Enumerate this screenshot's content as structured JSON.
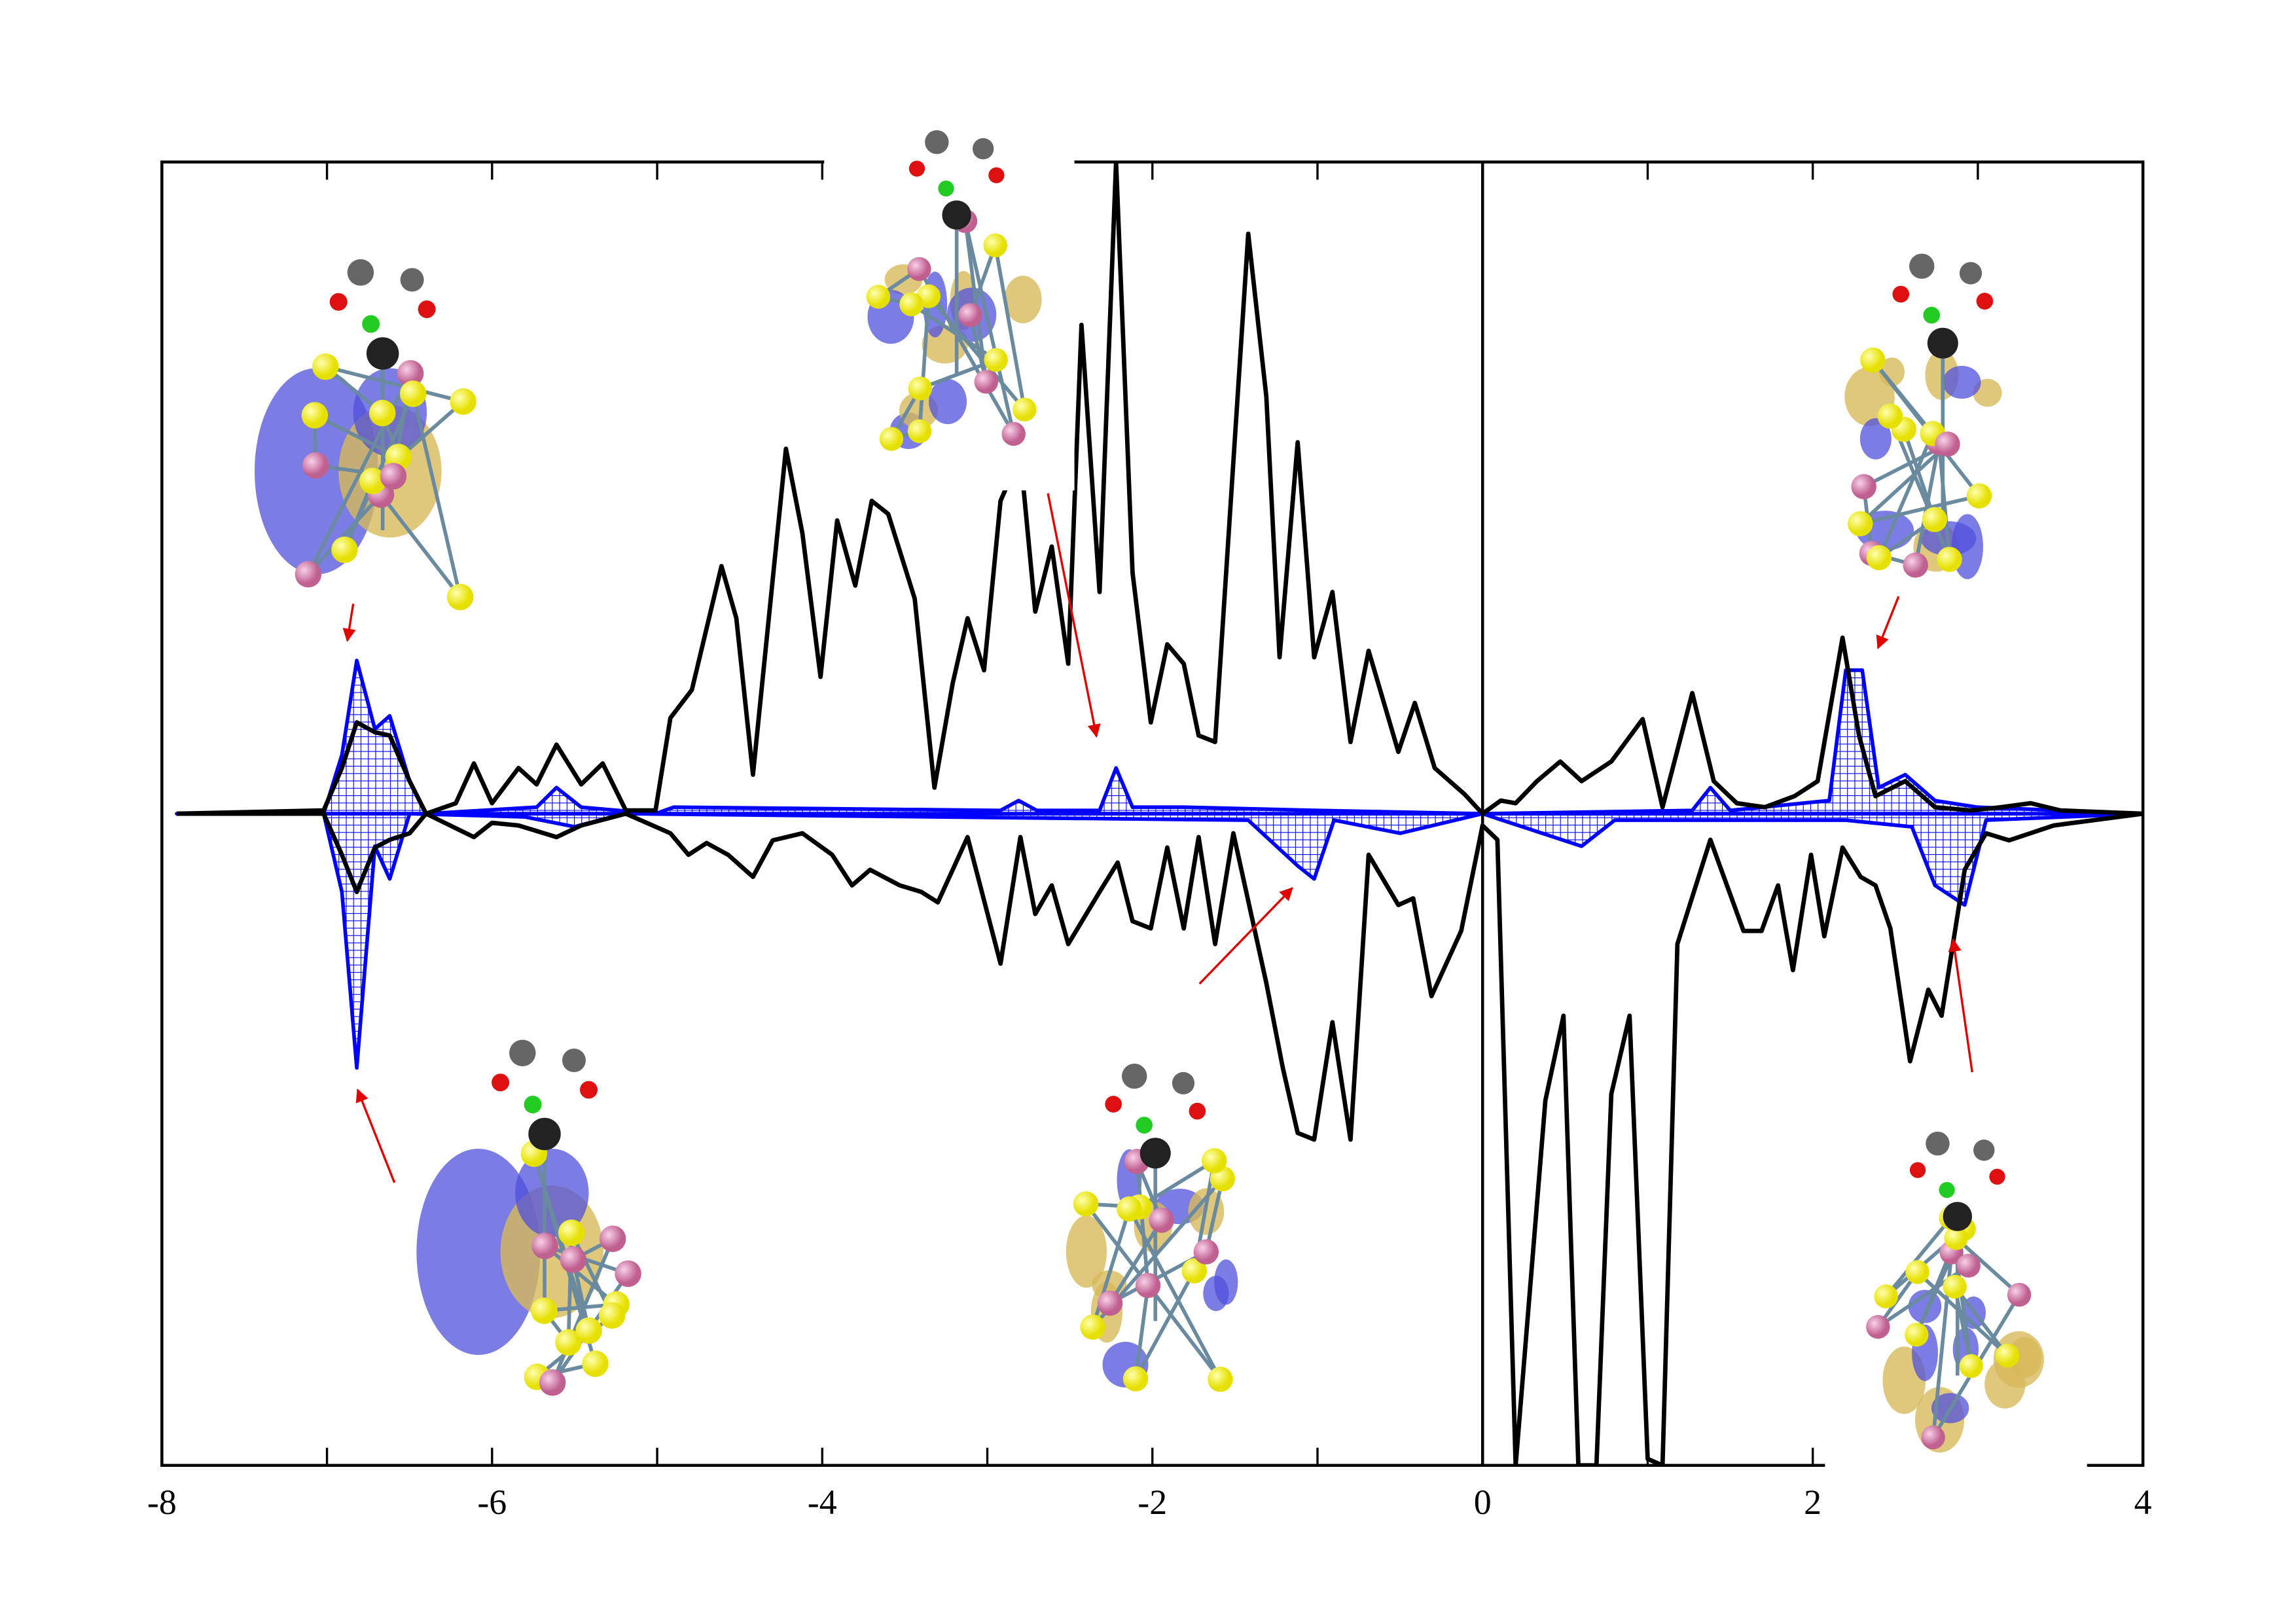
{
  "chart_data": {
    "type": "line",
    "xlim": [
      -8,
      4
    ],
    "ylim": [
      -1,
      1
    ],
    "xticks": [
      -8,
      -6,
      -4,
      -2,
      0,
      2,
      4
    ],
    "xminor": [
      -7,
      -5,
      -3,
      -1,
      1,
      3
    ],
    "vlines": [
      0
    ],
    "series": [
      {
        "color": "#000000",
        "area": false,
        "x": [
          -7.91,
          -7.02,
          -6.91,
          -6.82,
          -6.71,
          -6.62,
          -6.5,
          -6.4,
          -6.22,
          -6.11,
          -6.0,
          -5.84,
          -5.73,
          -5.61,
          -5.46,
          -5.33,
          -5.19,
          -5.01,
          -4.92,
          -4.79,
          -4.61,
          -4.52,
          -4.42,
          -4.22,
          -4.12,
          -4.01,
          -3.91,
          -3.8,
          -3.7,
          -3.6,
          -3.44,
          -3.32,
          -3.21,
          -3.12,
          -3.02,
          -2.92,
          -2.8,
          -2.71,
          -2.61,
          -2.51,
          -2.43,
          -2.32,
          -2.22,
          -2.12,
          -2.01,
          -1.91,
          -1.81,
          -1.72,
          -1.62,
          -1.42,
          -1.31,
          -1.23,
          -1.12,
          -1.02,
          -0.91,
          -0.8,
          -0.69,
          -0.51,
          -0.41,
          -0.29,
          -0.11,
          0,
          0.11,
          0.2,
          0.33,
          0.47,
          0.6,
          0.78,
          0.97,
          1.09,
          1.27,
          1.4,
          1.54,
          1.71,
          1.89,
          2.03,
          2.18,
          2.28,
          2.38,
          2.56,
          2.74,
          2.96,
          3.14,
          3.32,
          3.5,
          4
        ],
        "values": [
          0,
          0.005,
          0.07,
          0.14,
          0.125,
          0.12,
          0.05,
          0,
          0.016,
          0.077,
          0.016,
          0.07,
          0.045,
          0.106,
          0.045,
          0.077,
          0.005,
          0.005,
          0.147,
          0.19,
          0.38,
          0.3,
          0.06,
          0.56,
          0.43,
          0.21,
          0.45,
          0.35,
          0.48,
          0.46,
          0.33,
          0.04,
          0.2,
          0.3,
          0.22,
          0.48,
          0.55,
          0.31,
          0.41,
          0.23,
          0.75,
          0.34,
          1.0,
          0.37,
          0.14,
          0.26,
          0.23,
          0.12,
          0.11,
          0.89,
          0.64,
          0.24,
          0.57,
          0.24,
          0.34,
          0.11,
          0.25,
          0.095,
          0.17,
          0.07,
          0.03,
          0,
          0.02,
          0.016,
          0.05,
          0.08,
          0.05,
          0.08,
          0.145,
          0.01,
          0.185,
          0.05,
          0.016,
          0.01,
          0.027,
          0.05,
          0.27,
          0.12,
          0.027,
          0.05,
          0.01,
          0.005,
          0.01,
          0.016,
          0.005,
          0
        ]
      },
      {
        "color": "#000000",
        "area": false,
        "x": [
          -7.91,
          -7.02,
          -6.91,
          -6.82,
          -6.71,
          -6.62,
          -6.5,
          -6.4,
          -6.11,
          -6.0,
          -5.84,
          -5.61,
          -5.46,
          -5.19,
          -4.92,
          -4.81,
          -4.7,
          -4.57,
          -4.42,
          -4.3,
          -4.12,
          -3.94,
          -3.82,
          -3.71,
          -3.53,
          -3.4,
          -3.3,
          -3.21,
          -3.12,
          -2.92,
          -2.8,
          -2.71,
          -2.61,
          -2.51,
          -2.32,
          -2.21,
          -2.12,
          -2.01,
          -1.91,
          -1.81,
          -1.72,
          -1.62,
          -1.51,
          -1.31,
          -1.21,
          -1.12,
          -1.02,
          -0.91,
          -0.8,
          -0.69,
          -0.51,
          -0.42,
          -0.31,
          -0.13,
          0,
          0.09,
          0.2,
          0.38,
          0.49,
          0.58,
          0.69,
          0.78,
          0.89,
          1.0,
          1.09,
          1.18,
          1.38,
          1.58,
          1.69,
          1.79,
          1.88,
          1.99,
          2.07,
          2.18,
          2.29,
          2.38,
          2.47,
          2.59,
          2.7,
          2.78,
          2.92,
          3.05,
          3.19,
          3.46,
          4
        ],
        "values": [
          0,
          0,
          -0.063,
          -0.12,
          -0.052,
          -0.04,
          -0.03,
          0,
          -0.036,
          -0.014,
          -0.018,
          -0.036,
          -0.018,
          0,
          -0.03,
          -0.063,
          -0.045,
          -0.063,
          -0.097,
          -0.041,
          -0.03,
          -0.063,
          -0.11,
          -0.086,
          -0.11,
          -0.12,
          -0.136,
          -0.086,
          -0.036,
          -0.23,
          -0.036,
          -0.154,
          -0.11,
          -0.2,
          -0.12,
          -0.075,
          -0.165,
          -0.176,
          -0.052,
          -0.176,
          -0.036,
          -0.2,
          -0.03,
          -0.26,
          -0.39,
          -0.49,
          -0.5,
          -0.32,
          -0.5,
          -0.063,
          -0.14,
          -0.13,
          -0.28,
          -0.18,
          -0.018,
          -0.04,
          -1.0,
          -0.44,
          -0.31,
          -1.0,
          -1.0,
          -0.43,
          -0.31,
          -0.99,
          -1.0,
          -0.2,
          -0.04,
          -0.18,
          -0.18,
          -0.11,
          -0.24,
          -0.063,
          -0.188,
          -0.052,
          -0.097,
          -0.11,
          -0.176,
          -0.38,
          -0.27,
          -0.31,
          -0.086,
          -0.03,
          -0.041,
          -0.018,
          0
        ]
      },
      {
        "color": "#0000ff",
        "area": true,
        "x": [
          -7.91,
          -7.02,
          -6.91,
          -6.82,
          -6.71,
          -6.62,
          -6.5,
          -6.4,
          -5.73,
          -5.61,
          -5.46,
          -5.01,
          -4.9,
          -2.92,
          -2.81,
          -2.7,
          -2.32,
          -2.22,
          -2.12,
          -1.81,
          -1.0,
          0,
          1.27,
          1.38,
          1.5,
          2.1,
          2.2,
          2.3,
          2.4,
          2.56,
          2.74,
          3.0,
          4
        ],
        "values": [
          0,
          0,
          0.09,
          0.235,
          0.13,
          0.15,
          0.05,
          0,
          0.01,
          0.04,
          0.01,
          0,
          0.01,
          0.005,
          0.02,
          0.005,
          0.005,
          0.07,
          0.01,
          0.01,
          0.005,
          0,
          0.005,
          0.04,
          0.005,
          0.02,
          0.22,
          0.22,
          0.04,
          0.06,
          0.02,
          0.01,
          0
        ]
      },
      {
        "color": "#0000ff",
        "area": true,
        "x": [
          -7.91,
          -7.02,
          -6.91,
          -6.82,
          -6.71,
          -6.62,
          -6.5,
          -5.8,
          -5.5,
          -5.2,
          -1.42,
          -1.12,
          -1.02,
          -0.9,
          -0.5,
          0,
          0.6,
          0.8,
          2.2,
          2.6,
          2.74,
          2.92,
          3.05,
          4
        ],
        "values": [
          0,
          0,
          -0.12,
          -0.39,
          -0.05,
          -0.1,
          0,
          -0.005,
          -0.02,
          0,
          -0.01,
          -0.08,
          -0.1,
          -0.01,
          -0.03,
          0,
          -0.05,
          -0.01,
          -0.01,
          -0.02,
          -0.11,
          -0.14,
          -0.01,
          0
        ]
      }
    ]
  }
}
